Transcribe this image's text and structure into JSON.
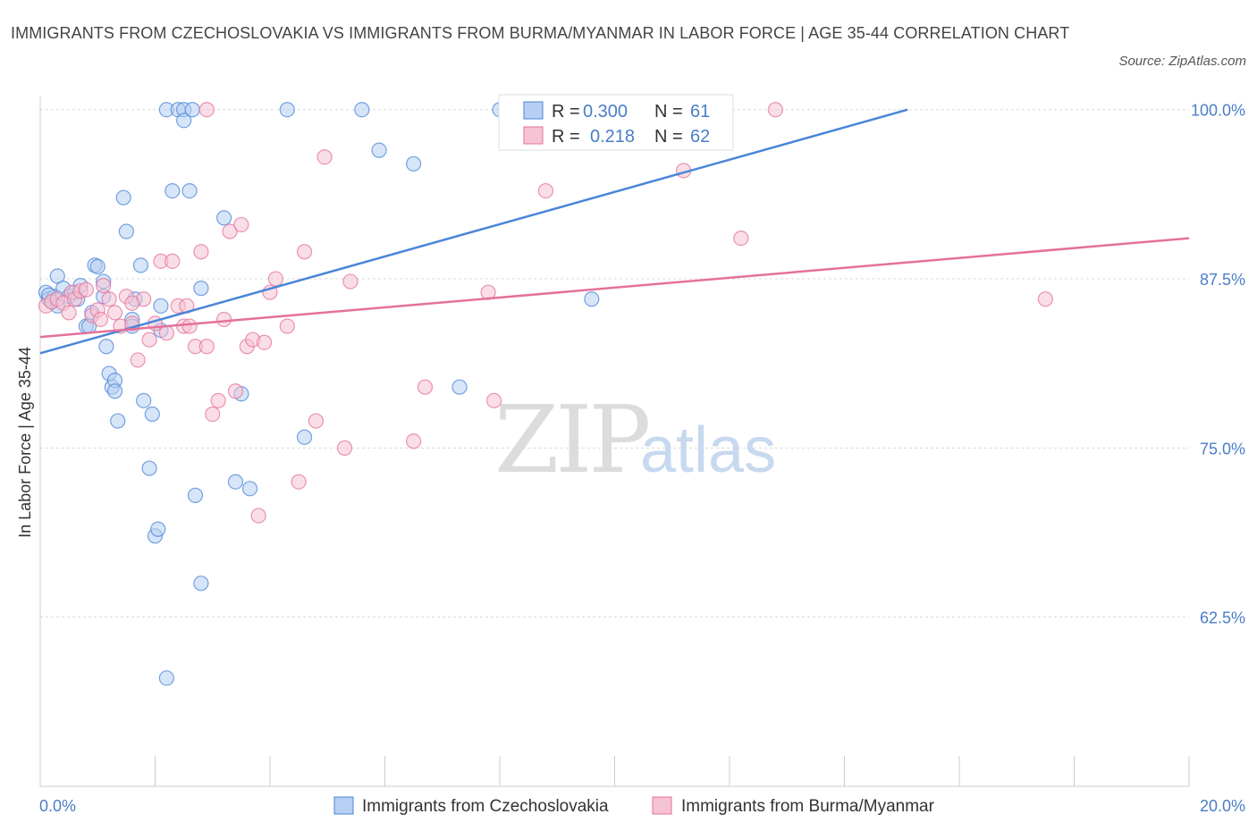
{
  "header": {
    "title": "IMMIGRANTS FROM CZECHOSLOVAKIA VS IMMIGRANTS FROM BURMA/MYANMAR IN LABOR FORCE | AGE 35-44 CORRELATION CHART",
    "source": "Source: ZipAtlas.com"
  },
  "watermark": {
    "zip": "ZIP",
    "atlas": "atlas"
  },
  "colors": {
    "blue": "#4a86d8",
    "blue_fill": "#b7cff3",
    "pink": "#e4719a",
    "pink_fill": "#f6c3d4",
    "tick": "#4a7ec7",
    "grid": "#d8d8d8"
  },
  "legend": {
    "r_label": "R =",
    "n_label": "N =",
    "rows": [
      {
        "r": "0.300",
        "n": "61"
      },
      {
        "r": "0.218",
        "n": "62"
      }
    ]
  },
  "chart_data": {
    "type": "scatter",
    "title": "IMMIGRANTS FROM CZECHOSLOVAKIA VS IMMIGRANTS FROM BURMA/MYANMAR IN LABOR FORCE | AGE 35-44 CORRELATION CHART",
    "xlabel": "",
    "ylabel": "In Labor Force | Age 35-44",
    "xlim": [
      0,
      20
    ],
    "ylim": [
      50,
      101.5
    ],
    "x_tick_labels": [
      {
        "value": 0,
        "label": "0.0%"
      },
      {
        "value": 20,
        "label": "20.0%"
      }
    ],
    "y_tick_labels": [
      {
        "value": 100,
        "label": "100.0%"
      },
      {
        "value": 87.5,
        "label": "87.5%"
      },
      {
        "value": 75,
        "label": "75.0%"
      },
      {
        "value": 62.5,
        "label": "62.5%"
      }
    ],
    "x_minor_ticks": [
      0,
      2,
      4,
      6,
      8,
      10,
      12,
      14,
      16,
      18,
      20
    ],
    "grid": true,
    "legend_position": "bottom",
    "series": [
      {
        "name": "Immigrants from Czechoslovakia",
        "color": "#4a86d8",
        "r": 0.3,
        "n": 61,
        "trend": {
          "x0": 0,
          "y0": 82.0,
          "x1": 15.1,
          "y1": 100
        },
        "points": [
          [
            0.1,
            86.5
          ],
          [
            0.15,
            86.0
          ],
          [
            0.2,
            85.8
          ],
          [
            0.25,
            86.2
          ],
          [
            0.3,
            85.5
          ],
          [
            0.3,
            87.7
          ],
          [
            0.4,
            86.8
          ],
          [
            0.5,
            86.2
          ],
          [
            0.6,
            86.5
          ],
          [
            0.65,
            86.0
          ],
          [
            0.7,
            87.0
          ],
          [
            0.8,
            84.0
          ],
          [
            0.85,
            84.0
          ],
          [
            0.9,
            85.0
          ],
          [
            0.95,
            88.5
          ],
          [
            1.0,
            88.4
          ],
          [
            1.1,
            87.3
          ],
          [
            1.1,
            86.2
          ],
          [
            1.15,
            82.5
          ],
          [
            1.2,
            80.5
          ],
          [
            1.25,
            79.5
          ],
          [
            1.3,
            80.0
          ],
          [
            1.3,
            79.2
          ],
          [
            1.35,
            77.0
          ],
          [
            1.45,
            93.5
          ],
          [
            1.5,
            91.0
          ],
          [
            1.6,
            84.5
          ],
          [
            1.6,
            84.0
          ],
          [
            1.65,
            86.0
          ],
          [
            1.75,
            88.5
          ],
          [
            1.8,
            78.5
          ],
          [
            1.9,
            73.5
          ],
          [
            1.95,
            77.5
          ],
          [
            2.0,
            68.5
          ],
          [
            2.05,
            69.0
          ],
          [
            2.1,
            85.5
          ],
          [
            2.1,
            83.7
          ],
          [
            2.2,
            58.0
          ],
          [
            2.2,
            100.0
          ],
          [
            2.3,
            94.0
          ],
          [
            2.4,
            100.0
          ],
          [
            2.5,
            100.0
          ],
          [
            2.5,
            99.2
          ],
          [
            2.6,
            94.0
          ],
          [
            2.65,
            100.0
          ],
          [
            2.7,
            71.5
          ],
          [
            2.8,
            65.0
          ],
          [
            2.8,
            86.8
          ],
          [
            3.2,
            92.0
          ],
          [
            3.4,
            72.5
          ],
          [
            3.5,
            79.0
          ],
          [
            3.65,
            72.0
          ],
          [
            4.3,
            100.0
          ],
          [
            4.6,
            75.8
          ],
          [
            5.6,
            100.0
          ],
          [
            5.9,
            97.0
          ],
          [
            6.5,
            96.0
          ],
          [
            7.3,
            79.5
          ],
          [
            8.0,
            100.0
          ],
          [
            9.6,
            86.0
          ],
          [
            0.15,
            86.3
          ]
        ]
      },
      {
        "name": "Immigrants from Burma/Myanmar",
        "color": "#e4719a",
        "r": 0.218,
        "n": 62,
        "trend": {
          "x0": 0,
          "y0": 83.2,
          "x1": 20,
          "y1": 90.5
        },
        "points": [
          [
            0.1,
            85.5
          ],
          [
            0.2,
            85.8
          ],
          [
            0.3,
            86.0
          ],
          [
            0.4,
            85.7
          ],
          [
            0.5,
            85.0
          ],
          [
            0.55,
            86.5
          ],
          [
            0.6,
            86.0
          ],
          [
            0.7,
            86.6
          ],
          [
            0.8,
            86.7
          ],
          [
            0.9,
            84.8
          ],
          [
            1.0,
            85.2
          ],
          [
            1.05,
            84.5
          ],
          [
            1.1,
            87.0
          ],
          [
            1.2,
            86.0
          ],
          [
            1.3,
            85.0
          ],
          [
            1.4,
            84.0
          ],
          [
            1.5,
            86.2
          ],
          [
            1.6,
            84.2
          ],
          [
            1.7,
            81.5
          ],
          [
            1.8,
            86.0
          ],
          [
            1.9,
            83.0
          ],
          [
            2.0,
            84.2
          ],
          [
            2.1,
            88.8
          ],
          [
            2.2,
            83.5
          ],
          [
            2.3,
            88.8
          ],
          [
            2.4,
            85.5
          ],
          [
            2.5,
            84.0
          ],
          [
            2.55,
            85.5
          ],
          [
            2.6,
            84.0
          ],
          [
            2.7,
            82.5
          ],
          [
            2.8,
            89.5
          ],
          [
            2.9,
            82.5
          ],
          [
            3.0,
            77.5
          ],
          [
            3.1,
            78.5
          ],
          [
            3.2,
            84.5
          ],
          [
            3.3,
            91.0
          ],
          [
            3.4,
            79.2
          ],
          [
            3.5,
            91.5
          ],
          [
            3.6,
            82.5
          ],
          [
            3.7,
            83.0
          ],
          [
            3.8,
            70.0
          ],
          [
            3.9,
            82.8
          ],
          [
            4.0,
            86.5
          ],
          [
            4.1,
            87.5
          ],
          [
            4.3,
            84.0
          ],
          [
            4.5,
            72.5
          ],
          [
            4.6,
            89.5
          ],
          [
            4.8,
            77.0
          ],
          [
            4.95,
            96.5
          ],
          [
            5.3,
            75.0
          ],
          [
            5.4,
            87.3
          ],
          [
            6.5,
            75.5
          ],
          [
            6.7,
            79.5
          ],
          [
            7.8,
            86.5
          ],
          [
            7.9,
            78.5
          ],
          [
            8.8,
            94.0
          ],
          [
            11.2,
            95.5
          ],
          [
            12.2,
            90.5
          ],
          [
            12.8,
            100.0
          ],
          [
            17.5,
            86.0
          ],
          [
            2.9,
            100.0
          ],
          [
            1.6,
            85.7
          ]
        ]
      }
    ]
  }
}
